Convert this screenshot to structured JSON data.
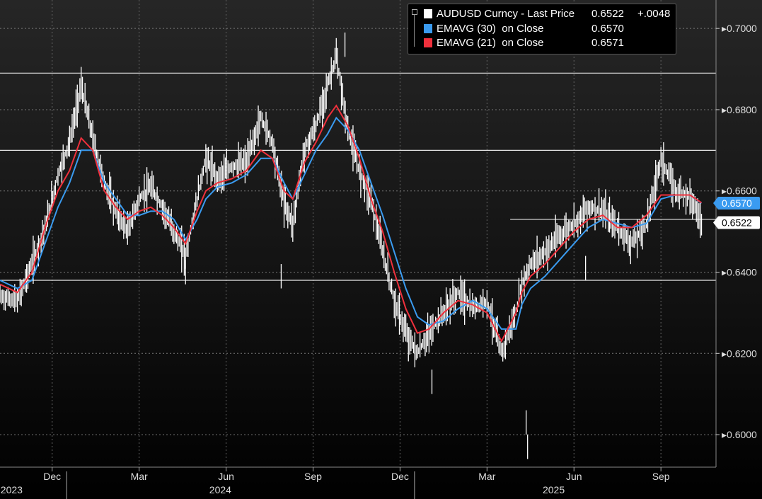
{
  "legend": {
    "main": {
      "name": "AUDUSD Curncy - Last Price",
      "value": "0.6522",
      "change": "+.0048",
      "color": "#ffffff"
    },
    "ema30": {
      "name": "EMAVG (30)  on Close",
      "value": "0.6570",
      "color": "#3a9bf0"
    },
    "ema21": {
      "name": "EMAVG (21)  on Close",
      "value": "0.6571",
      "color": "#f0303c"
    }
  },
  "chart_data": {
    "type": "line",
    "ylim": [
      0.592,
      0.707
    ],
    "y_ticks": [
      "0.7000",
      "0.6800",
      "0.6600",
      "0.6400",
      "0.6200",
      "0.6000"
    ],
    "y_tick_values": [
      0.7,
      0.68,
      0.66,
      0.64,
      0.62,
      0.6
    ],
    "x_month_labels": [
      "Dec",
      "Mar",
      "Jun",
      "Sep",
      "Dec",
      "Mar",
      "Jun",
      "Sep"
    ],
    "x_month_index": [
      2,
      5,
      8,
      11,
      14,
      17,
      20,
      23
    ],
    "x_year_labels": [
      "2023",
      "2024",
      "2025"
    ],
    "x_year_index": [
      0.6,
      7.8,
      19.3
    ],
    "x_year_sep_index": [
      2.5,
      14.5
    ],
    "x_range_months": [
      0.2,
      24.9
    ],
    "series": [
      {
        "name": "AUDUSD Curncy - Last Price",
        "style": "ohlc-bars",
        "color": "#ffffff",
        "last": 0.6522,
        "x": [
          0.2,
          0.8,
          1.3,
          1.8,
          2.2,
          2.6,
          3.0,
          3.4,
          3.8,
          4.2,
          4.6,
          5.0,
          5.4,
          5.8,
          6.2,
          6.6,
          7.0,
          7.3,
          7.7,
          8.2,
          8.7,
          9.2,
          9.6,
          10.0,
          10.3,
          10.7,
          11.1,
          11.5,
          11.8,
          12.2,
          12.6,
          13.0,
          13.4,
          13.8,
          14.2,
          14.6,
          15.0,
          15.5,
          16.0,
          16.5,
          17.0,
          17.5,
          18.0,
          18.2,
          18.5,
          19.0,
          19.5,
          20.0,
          20.5,
          21.0,
          21.5,
          22.0,
          22.5,
          23.0,
          23.5,
          24.0,
          24.4
        ],
        "y": [
          0.634,
          0.633,
          0.642,
          0.652,
          0.664,
          0.672,
          0.686,
          0.673,
          0.662,
          0.655,
          0.65,
          0.658,
          0.661,
          0.656,
          0.65,
          0.644,
          0.658,
          0.668,
          0.663,
          0.666,
          0.667,
          0.678,
          0.672,
          0.657,
          0.652,
          0.67,
          0.676,
          0.686,
          0.693,
          0.675,
          0.665,
          0.658,
          0.645,
          0.633,
          0.625,
          0.62,
          0.625,
          0.63,
          0.635,
          0.631,
          0.633,
          0.62,
          0.63,
          0.637,
          0.642,
          0.645,
          0.649,
          0.652,
          0.656,
          0.655,
          0.651,
          0.647,
          0.652,
          0.668,
          0.66,
          0.659,
          0.6522
        ]
      },
      {
        "name": "EMAVG (30) on Close",
        "style": "line",
        "color": "#3a9bf0",
        "last": 0.657,
        "x": [
          0.2,
          0.8,
          1.3,
          1.8,
          2.2,
          2.6,
          3.0,
          3.4,
          3.8,
          4.2,
          4.6,
          5.0,
          5.4,
          5.8,
          6.2,
          6.6,
          7.0,
          7.3,
          7.7,
          8.2,
          8.7,
          9.2,
          9.6,
          10.0,
          10.3,
          10.7,
          11.1,
          11.5,
          11.8,
          12.2,
          12.6,
          13.0,
          13.4,
          13.8,
          14.2,
          14.6,
          15.0,
          15.5,
          16.0,
          16.5,
          17.0,
          17.5,
          18.0,
          18.2,
          18.5,
          19.0,
          19.5,
          20.0,
          20.5,
          21.0,
          21.5,
          22.0,
          22.5,
          23.0,
          23.5,
          24.0,
          24.4
        ],
        "y": [
          0.638,
          0.636,
          0.638,
          0.648,
          0.656,
          0.662,
          0.67,
          0.67,
          0.662,
          0.658,
          0.654,
          0.654,
          0.655,
          0.655,
          0.653,
          0.648,
          0.653,
          0.658,
          0.661,
          0.662,
          0.664,
          0.668,
          0.668,
          0.662,
          0.658,
          0.664,
          0.67,
          0.674,
          0.678,
          0.675,
          0.67,
          0.662,
          0.654,
          0.645,
          0.636,
          0.629,
          0.627,
          0.628,
          0.631,
          0.633,
          0.631,
          0.626,
          0.626,
          0.632,
          0.636,
          0.639,
          0.643,
          0.647,
          0.651,
          0.653,
          0.652,
          0.651,
          0.652,
          0.658,
          0.659,
          0.659,
          0.657
        ]
      },
      {
        "name": "EMAVG (21) on Close",
        "style": "line",
        "color": "#f0303c",
        "last": 0.6571,
        "x": [
          0.2,
          0.8,
          1.3,
          1.8,
          2.2,
          2.6,
          3.0,
          3.4,
          3.8,
          4.2,
          4.6,
          5.0,
          5.4,
          5.8,
          6.2,
          6.6,
          7.0,
          7.3,
          7.7,
          8.2,
          8.7,
          9.2,
          9.6,
          10.0,
          10.3,
          10.7,
          11.1,
          11.5,
          11.8,
          12.2,
          12.6,
          13.0,
          13.4,
          13.8,
          14.2,
          14.6,
          15.0,
          15.5,
          16.0,
          16.5,
          17.0,
          17.5,
          18.0,
          18.2,
          18.5,
          19.0,
          19.5,
          20.0,
          20.5,
          21.0,
          21.5,
          22.0,
          22.5,
          23.0,
          23.5,
          24.0,
          24.4
        ],
        "y": [
          0.637,
          0.635,
          0.64,
          0.652,
          0.66,
          0.665,
          0.673,
          0.67,
          0.66,
          0.656,
          0.653,
          0.655,
          0.656,
          0.654,
          0.651,
          0.647,
          0.655,
          0.66,
          0.662,
          0.663,
          0.665,
          0.67,
          0.668,
          0.66,
          0.658,
          0.667,
          0.672,
          0.678,
          0.681,
          0.676,
          0.668,
          0.658,
          0.65,
          0.64,
          0.631,
          0.625,
          0.626,
          0.63,
          0.633,
          0.632,
          0.63,
          0.623,
          0.63,
          0.635,
          0.639,
          0.642,
          0.646,
          0.65,
          0.653,
          0.654,
          0.651,
          0.651,
          0.654,
          0.659,
          0.659,
          0.659,
          0.6571
        ]
      }
    ],
    "hlines": [
      {
        "y": 0.689,
        "x_start": 0.0
      },
      {
        "y": 0.67,
        "x_start": 0.0
      },
      {
        "y": 0.653,
        "x_start": 17.8
      },
      {
        "y": 0.638,
        "x_start": 0.0
      }
    ],
    "last_price_tags": [
      {
        "label": "0.6570",
        "value": 0.657,
        "color": "#3a9bf0"
      },
      {
        "label": "0.6522",
        "value": 0.6522,
        "color": "#ffffff"
      }
    ]
  }
}
